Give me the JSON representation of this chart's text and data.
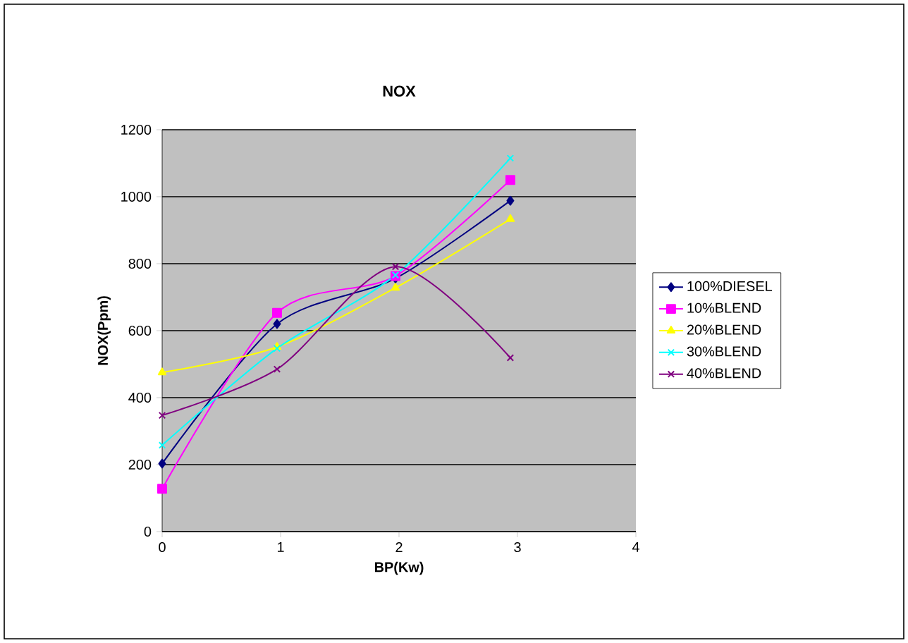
{
  "chart_data": {
    "type": "line",
    "title": "NOX",
    "xlabel": "BP(Kw)",
    "ylabel": "NOX(Ppm)",
    "xlim": [
      0,
      4
    ],
    "xticks": [
      0,
      1,
      2,
      3,
      4
    ],
    "ylim": [
      0,
      1200
    ],
    "yticks": [
      0,
      200,
      400,
      600,
      800,
      1000,
      1200
    ],
    "grid": "y",
    "legend": "right",
    "series": [
      {
        "name": "100%DIESEL",
        "color": "#000080",
        "marker": "diamond",
        "x": [
          0,
          0.97,
          1.97,
          2.94
        ],
        "values": [
          203,
          620,
          756,
          988
        ]
      },
      {
        "name": "10%BLEND",
        "color": "#ff00ff",
        "marker": "square",
        "x": [
          0,
          0.97,
          1.97,
          2.94
        ],
        "values": [
          128,
          653,
          763,
          1050
        ]
      },
      {
        "name": "20%BLEND",
        "color": "#ffff00",
        "marker": "triangle",
        "x": [
          0,
          0.97,
          1.97,
          2.94
        ],
        "values": [
          475,
          551,
          728,
          933
        ]
      },
      {
        "name": "30%BLEND",
        "color": "#00ffff",
        "marker": "cross",
        "x": [
          0,
          0.97,
          1.97,
          2.94
        ],
        "values": [
          258,
          547,
          766,
          1115
        ]
      },
      {
        "name": "40%BLEND",
        "color": "#800080",
        "marker": "cross",
        "x": [
          0,
          0.97,
          1.97,
          2.94
        ],
        "values": [
          347,
          485,
          791,
          519
        ]
      }
    ]
  }
}
